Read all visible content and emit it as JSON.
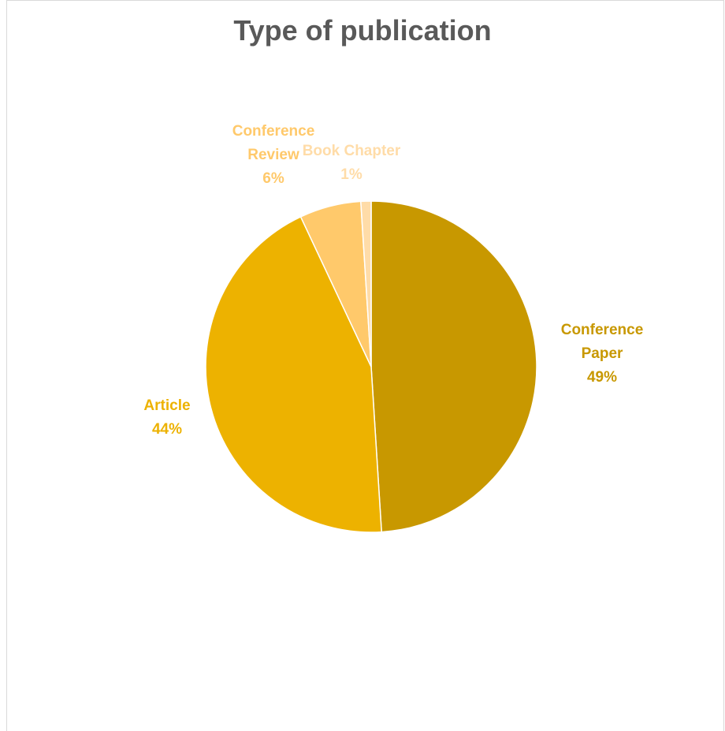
{
  "chart_data": {
    "type": "pie",
    "title": "Type of publication",
    "slices": [
      {
        "name": "Conference Paper",
        "label_lines": [
          "Conference",
          "Paper"
        ],
        "value": 49,
        "value_label": "49%",
        "color": "#C89800"
      },
      {
        "name": "Article",
        "label_lines": [
          "Article"
        ],
        "value": 44,
        "value_label": "44%",
        "color": "#EDB200"
      },
      {
        "name": "Conference Review",
        "label_lines": [
          "Conference",
          "Review"
        ],
        "value": 6,
        "value_label": "6%",
        "color": "#FFC96B"
      },
      {
        "name": "Book Chapter",
        "label_lines": [
          "Book Chapter"
        ],
        "value": 1,
        "value_label": "1%",
        "color": "#FFDCA8"
      }
    ],
    "start_angle_deg": 0,
    "direction": "clockwise"
  }
}
